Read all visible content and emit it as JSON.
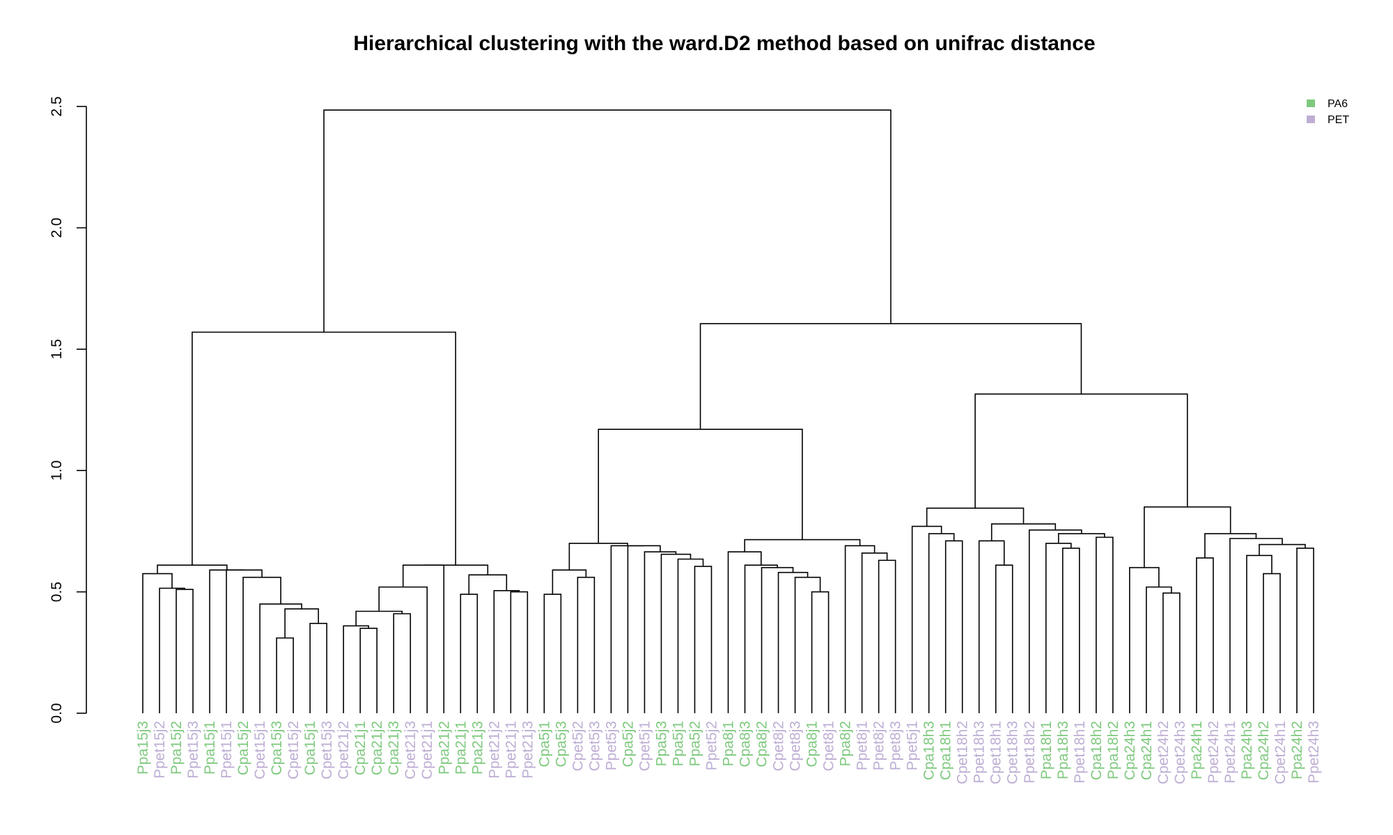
{
  "chart_data": {
    "type": "dendrogram",
    "title": "Hierarchical clustering with the ward.D2 method based on unifrac distance",
    "ylim": [
      0,
      2.5
    ],
    "yticks": [
      "0.0",
      "0.5",
      "1.0",
      "1.5",
      "2.0",
      "2.5"
    ],
    "legend": {
      "placement": "top-right",
      "entries": [
        {
          "label": "PA6",
          "color": "#7fc97f"
        },
        {
          "label": "PET",
          "color": "#beaed4"
        }
      ]
    },
    "leaves": [
      {
        "label": "Ppa15j3",
        "group": "PA6"
      },
      {
        "label": "Ppet15j2",
        "group": "PET"
      },
      {
        "label": "Ppa15j2",
        "group": "PA6"
      },
      {
        "label": "Ppet15j3",
        "group": "PET"
      },
      {
        "label": "Ppa15j1",
        "group": "PA6"
      },
      {
        "label": "Ppet15j1",
        "group": "PET"
      },
      {
        "label": "Cpa15j2",
        "group": "PA6"
      },
      {
        "label": "Cpet15j1",
        "group": "PET"
      },
      {
        "label": "Cpa15j3",
        "group": "PA6"
      },
      {
        "label": "Cpet15j2",
        "group": "PET"
      },
      {
        "label": "Cpa15j1",
        "group": "PA6"
      },
      {
        "label": "Cpet15j3",
        "group": "PET"
      },
      {
        "label": "Cpet21j2",
        "group": "PET"
      },
      {
        "label": "Cpa21j1",
        "group": "PA6"
      },
      {
        "label": "Cpa21j2",
        "group": "PA6"
      },
      {
        "label": "Cpa21j3",
        "group": "PA6"
      },
      {
        "label": "Cpet21j3",
        "group": "PET"
      },
      {
        "label": "Cpet21j1",
        "group": "PET"
      },
      {
        "label": "Ppa21j2",
        "group": "PA6"
      },
      {
        "label": "Ppa21j1",
        "group": "PA6"
      },
      {
        "label": "Ppa21j3",
        "group": "PA6"
      },
      {
        "label": "Ppet21j2",
        "group": "PET"
      },
      {
        "label": "Ppet21j1",
        "group": "PET"
      },
      {
        "label": "Ppet21j3",
        "group": "PET"
      },
      {
        "label": "Cpa5j1",
        "group": "PA6"
      },
      {
        "label": "Cpa5j3",
        "group": "PA6"
      },
      {
        "label": "Cpet5j2",
        "group": "PET"
      },
      {
        "label": "Cpet5j3",
        "group": "PET"
      },
      {
        "label": "Ppet5j3",
        "group": "PET"
      },
      {
        "label": "Cpa5j2",
        "group": "PA6"
      },
      {
        "label": "Cpet5j1",
        "group": "PET"
      },
      {
        "label": "Ppa5j3",
        "group": "PA6"
      },
      {
        "label": "Ppa5j1",
        "group": "PA6"
      },
      {
        "label": "Ppa5j2",
        "group": "PA6"
      },
      {
        "label": "Ppet5j2",
        "group": "PET"
      },
      {
        "label": "Ppa8j1",
        "group": "PA6"
      },
      {
        "label": "Cpa8j3",
        "group": "PA6"
      },
      {
        "label": "Cpa8j2",
        "group": "PA6"
      },
      {
        "label": "Cpet8j2",
        "group": "PET"
      },
      {
        "label": "Cpet8j3",
        "group": "PET"
      },
      {
        "label": "Cpa8j1",
        "group": "PA6"
      },
      {
        "label": "Cpet8j1",
        "group": "PET"
      },
      {
        "label": "Ppa8j2",
        "group": "PA6"
      },
      {
        "label": "Ppet8j1",
        "group": "PET"
      },
      {
        "label": "Ppet8j2",
        "group": "PET"
      },
      {
        "label": "Ppet8j3",
        "group": "PET"
      },
      {
        "label": "Ppet5j1",
        "group": "PET"
      },
      {
        "label": "Cpa18h3",
        "group": "PA6"
      },
      {
        "label": "Cpa18h1",
        "group": "PA6"
      },
      {
        "label": "Cpet18h2",
        "group": "PET"
      },
      {
        "label": "Ppet18h3",
        "group": "PET"
      },
      {
        "label": "Cpet18h1",
        "group": "PET"
      },
      {
        "label": "Cpet18h3",
        "group": "PET"
      },
      {
        "label": "Ppet18h2",
        "group": "PET"
      },
      {
        "label": "Ppa18h1",
        "group": "PA6"
      },
      {
        "label": "Ppa18h3",
        "group": "PA6"
      },
      {
        "label": "Ppet18h1",
        "group": "PET"
      },
      {
        "label": "Cpa18h2",
        "group": "PA6"
      },
      {
        "label": "Ppa18h2",
        "group": "PA6"
      },
      {
        "label": "Cpa24h3",
        "group": "PA6"
      },
      {
        "label": "Cpa24h1",
        "group": "PA6"
      },
      {
        "label": "Cpet24h2",
        "group": "PET"
      },
      {
        "label": "Cpet24h3",
        "group": "PET"
      },
      {
        "label": "Ppa24h1",
        "group": "PA6"
      },
      {
        "label": "Ppet24h2",
        "group": "PET"
      },
      {
        "label": "Ppet24h1",
        "group": "PET"
      },
      {
        "label": "Ppa24h3",
        "group": "PA6"
      },
      {
        "label": "Cpa24h2",
        "group": "PA6"
      },
      {
        "label": "Cpet24h1",
        "group": "PET"
      },
      {
        "label": "Ppa24h2",
        "group": "PA6"
      },
      {
        "label": "Ppet24h3",
        "group": "PET"
      }
    ],
    "merges": [
      [
        2,
        3,
        0.51
      ],
      [
        1,
        "n0",
        0.515
      ],
      [
        0,
        "n1",
        0.575
      ],
      [
        8,
        9,
        0.31
      ],
      [
        10,
        11,
        0.37
      ],
      [
        "n3",
        "n4",
        0.43
      ],
      [
        7,
        "n5",
        0.45
      ],
      [
        6,
        "n6",
        0.56
      ],
      [
        5,
        "n7",
        0.59
      ],
      [
        4,
        "n8",
        0.59
      ],
      [
        "n2",
        "n9",
        0.61
      ],
      [
        13,
        14,
        0.35
      ],
      [
        12,
        "n11",
        0.36
      ],
      [
        15,
        16,
        0.41
      ],
      [
        "n12",
        "n13",
        0.42
      ],
      [
        17,
        "n14",
        0.52
      ],
      [
        18,
        "n15",
        0.61
      ],
      [
        19,
        20,
        0.49
      ],
      [
        22,
        23,
        0.5
      ],
      [
        21,
        "n18",
        0.505
      ],
      [
        "n17",
        "n19",
        0.57
      ],
      [
        "n16",
        "n20",
        0.61
      ],
      [
        "n10",
        "n21",
        1.57
      ],
      [
        24,
        25,
        0.49
      ],
      [
        26,
        27,
        0.56
      ],
      [
        "n23",
        "n24",
        0.59
      ],
      [
        33,
        34,
        0.605
      ],
      [
        32,
        "n26",
        0.635
      ],
      [
        31,
        "n27",
        0.655
      ],
      [
        30,
        "n28",
        0.665
      ],
      [
        29,
        "n29",
        0.69
      ],
      [
        28,
        "n30",
        0.69
      ],
      [
        "n25",
        "n31",
        0.7
      ],
      [
        40,
        41,
        0.5
      ],
      [
        39,
        "n33",
        0.56
      ],
      [
        38,
        "n34",
        0.58
      ],
      [
        37,
        "n35",
        0.6
      ],
      [
        36,
        "n36",
        0.61
      ],
      [
        35,
        "n37",
        0.665
      ],
      [
        44,
        45,
        0.63
      ],
      [
        43,
        "n39",
        0.66
      ],
      [
        42,
        "n40",
        0.69
      ],
      [
        "n38",
        "n41",
        0.715
      ],
      [
        "n32",
        "n42",
        1.17
      ],
      [
        48,
        49,
        0.71
      ],
      [
        47,
        "n44",
        0.74
      ],
      [
        46,
        "n45",
        0.77
      ],
      [
        51,
        52,
        0.61
      ],
      [
        50,
        "n47",
        0.71
      ],
      [
        55,
        56,
        0.68
      ],
      [
        54,
        "n49",
        0.7
      ],
      [
        57,
        58,
        0.725
      ],
      [
        "n50",
        "n51",
        0.74
      ],
      [
        53,
        "n52",
        0.755
      ],
      [
        "n48",
        "n53",
        0.78
      ],
      [
        "n46",
        "n54",
        0.845
      ],
      [
        61,
        62,
        0.495
      ],
      [
        60,
        "n56",
        0.52
      ],
      [
        59,
        "n57",
        0.6
      ],
      [
        67,
        68,
        0.575
      ],
      [
        66,
        "n59",
        0.65
      ],
      [
        69,
        70,
        0.68
      ],
      [
        "n60",
        "n61",
        0.695
      ],
      [
        65,
        "n62",
        0.72
      ],
      [
        63,
        64,
        0.64
      ],
      [
        "n64",
        "n63",
        0.74
      ],
      [
        "n58",
        "n65",
        0.85
      ],
      [
        "n55",
        "n66",
        1.315
      ],
      [
        "n43",
        "n67",
        1.605
      ],
      [
        "n22",
        "n68",
        2.485
      ]
    ]
  }
}
